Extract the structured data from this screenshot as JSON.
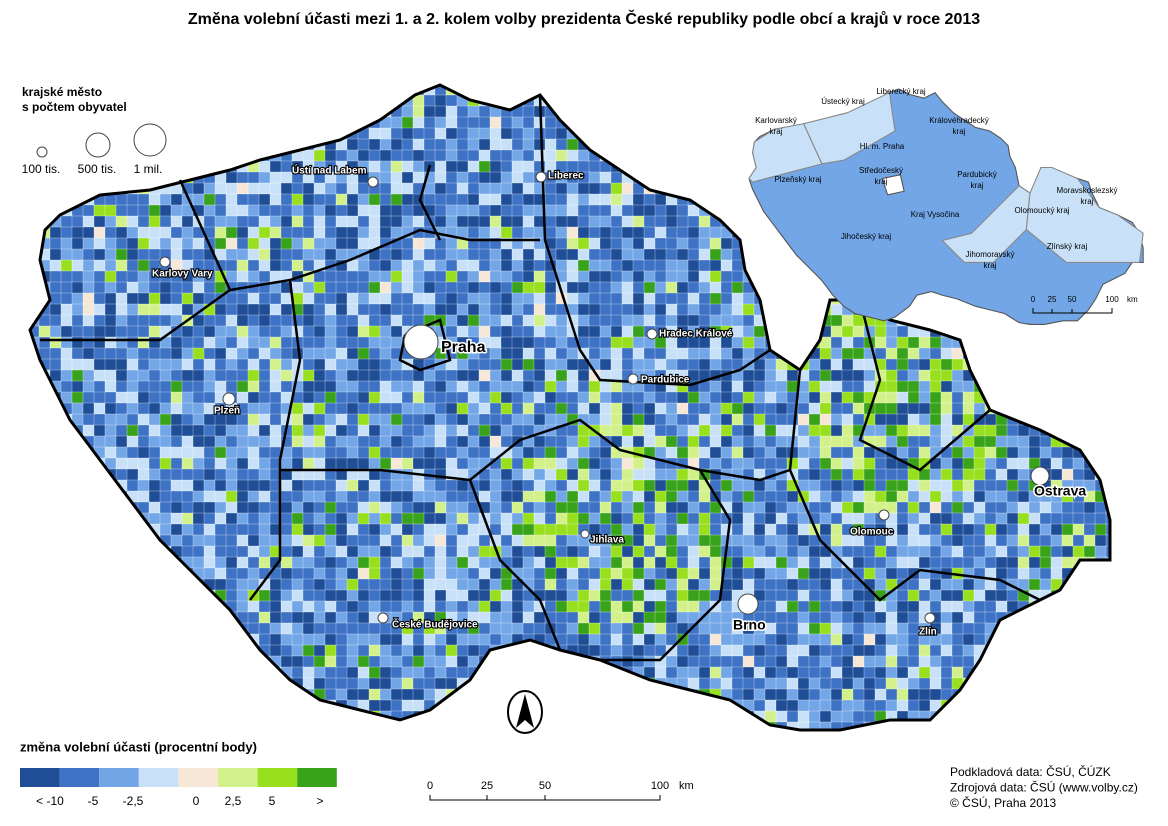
{
  "title": "Změna volební účasti mezi 1. a  2. kolem volby prezidenta České republiky podle obcí a krajů v roce 2013",
  "size_legend": {
    "heading": [
      "krajské město",
      "s počtem obyvatel"
    ],
    "items": [
      "100 tis.",
      "500 tis.",
      "1 mil."
    ]
  },
  "cities": [
    "Ústí nad Labem",
    "Liberec",
    "Karlovy Vary",
    "Praha",
    "Hradec Králové",
    "Pardubice",
    "Plzeň",
    "Jihlava",
    "Olomouc",
    "Ostrava",
    "Brno",
    "Zlín",
    "České Budějovice"
  ],
  "inset": {
    "regions": [
      "Ústecký kraj",
      "Liberecký kraj",
      "Karlovarský kraj",
      "Královéhradecký kraj",
      "Hl. m. Praha",
      "Středočeský kraj",
      "Plzeňský kraj",
      "Pardubický kraj",
      "Moravskoslezský kraj",
      "Olomoucký kraj",
      "Kraj Vysočina",
      "Jihočeský kraj",
      "Jihomoravský kraj",
      "Zlínský kraj"
    ],
    "scale": {
      "ticks": [
        "0",
        "25",
        "50",
        "100"
      ],
      "unit": "km"
    }
  },
  "legend": {
    "title": "změna volební účasti (procentní body)",
    "colors": [
      "#1f4e96",
      "#3d72c4",
      "#72a6e6",
      "#c9e1f8",
      "#f6e7d7",
      "#d2f18a",
      "#98e01e",
      "#38a31a"
    ],
    "labels": [
      "< -10",
      "-5",
      "-2,5",
      "0",
      "2,5",
      "5",
      ">"
    ]
  },
  "scale": {
    "ticks": [
      "0",
      "25",
      "50",
      "100"
    ],
    "unit": "km"
  },
  "credits": [
    "Podkladová data: ČSÚ, ČÚZK",
    "Zdrojová data: ČSÚ (www.volby.cz)",
    "© ČSÚ, Praha 2013"
  ]
}
